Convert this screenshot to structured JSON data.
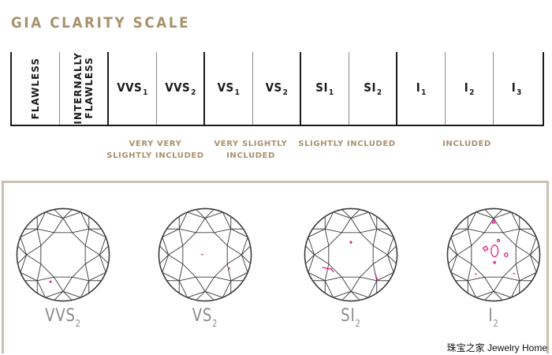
{
  "title": "GIA CLARITY SCALE",
  "scale": [
    {
      "type": "vertical",
      "lines": [
        "FLAWLESS"
      ]
    },
    {
      "type": "vertical",
      "lines": [
        "INTERNALLY",
        "FLAWLESS"
      ]
    },
    {
      "type": "grade",
      "main": "VVS",
      "sub": "1"
    },
    {
      "type": "grade",
      "main": "VVS",
      "sub": "2"
    },
    {
      "type": "grade",
      "main": "VS",
      "sub": "1"
    },
    {
      "type": "grade",
      "main": "VS",
      "sub": "2"
    },
    {
      "type": "grade",
      "main": "SI",
      "sub": "1"
    },
    {
      "type": "grade",
      "main": "SI",
      "sub": "2"
    },
    {
      "type": "grade",
      "main": "I",
      "sub": "1"
    },
    {
      "type": "grade",
      "main": "I",
      "sub": "2"
    },
    {
      "type": "grade",
      "main": "I",
      "sub": "3"
    }
  ],
  "groups": {
    "vvs": [
      "VERY VERY",
      "SLIGHTLY INCLUDED"
    ],
    "vs": [
      "VERY SLIGHTLY",
      "INCLUDED"
    ],
    "si": [
      "SLIGHTLY INCLUDED"
    ],
    "i": [
      "INCLUDED"
    ]
  },
  "diamonds": [
    {
      "main": "VVS",
      "sub": "2"
    },
    {
      "main": "VS",
      "sub": "2"
    },
    {
      "main": "SI",
      "sub": "2"
    },
    {
      "main": "I",
      "sub": "2"
    }
  ],
  "colors": {
    "gold": "#a8916b",
    "dark": "#1a1a1a",
    "inclusion": "#e0238c",
    "panel_border": "#c9bfae"
  },
  "watermark": "珠宝之家  Jewelry Home"
}
